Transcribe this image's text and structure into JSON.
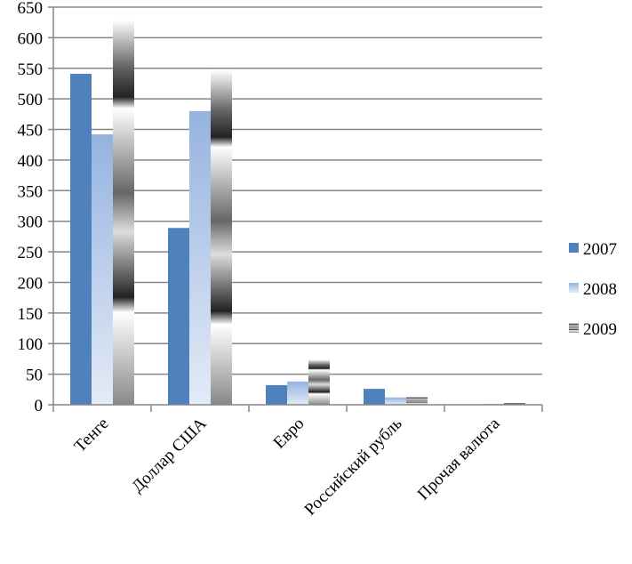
{
  "chart_data": {
    "type": "bar",
    "categories": [
      "Тенге",
      "Доллар США",
      "Евро",
      "Российский рубль",
      "Прочая валюта"
    ],
    "series": [
      {
        "name": "2007",
        "values": [
          541,
          289,
          32,
          26,
          0
        ],
        "color": "#4F81BD"
      },
      {
        "name": "2008",
        "values": [
          442,
          480,
          38,
          12,
          1.5
        ],
        "color": "#95B3E0"
      },
      {
        "name": "2009",
        "values": [
          629,
          547,
          74,
          13,
          3
        ],
        "color": "#808080"
      }
    ],
    "yticks": [
      0,
      50,
      100,
      150,
      200,
      250,
      300,
      350,
      400,
      450,
      500,
      550,
      600,
      650
    ],
    "ylim": [
      0,
      650
    ],
    "grid": true,
    "legend": "right",
    "title": "",
    "xlabel": "",
    "ylabel": ""
  }
}
